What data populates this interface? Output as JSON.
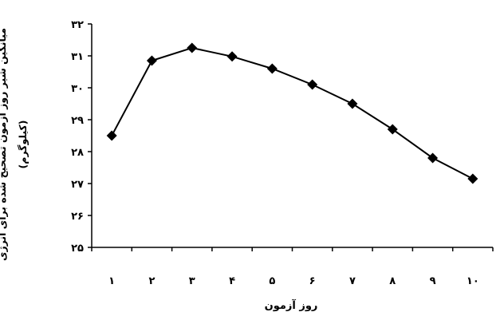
{
  "chart_data": {
    "type": "line",
    "title": "",
    "xlabel": "روز آزمون",
    "ylabel": "میانگین شیر روز آزمون تصحیح شده برای انرژی",
    "ylabel_unit": "(کیلوگرم)",
    "categories": [
      "۱",
      "۲",
      "۳",
      "۴",
      "۵",
      "۶",
      "۷",
      "۸",
      "۹",
      "۱۰"
    ],
    "y_ticks": [
      "۲۵",
      "۲۶",
      "۲۷",
      "۲۸",
      "۲۹",
      "۳۰",
      "۳۱",
      "۳۲"
    ],
    "ylim": [
      25,
      32
    ],
    "grid": false,
    "legend": "none",
    "series": [
      {
        "values": [
          28.5,
          30.85,
          31.25,
          30.98,
          30.6,
          30.1,
          29.5,
          28.7,
          27.8,
          27.15
        ]
      }
    ],
    "color": "#000000",
    "marker": "diamond"
  }
}
